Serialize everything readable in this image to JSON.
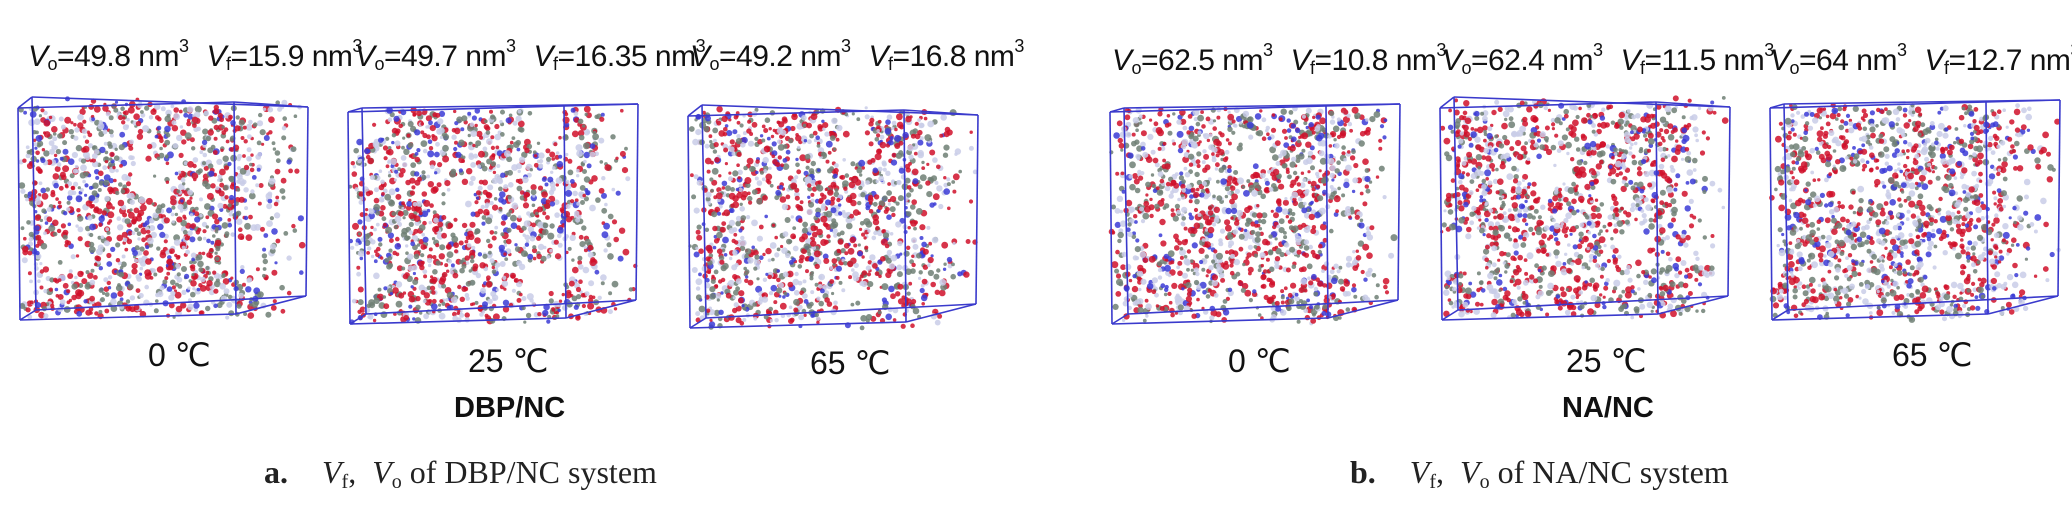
{
  "panels": [
    {
      "letter": "a.",
      "caption_text": "of DBP/NC system",
      "system": "DBP/NC",
      "sims": [
        {
          "vo": "=49.8 nm",
          "vf": "=15.9 nm",
          "temp": "0 ℃"
        },
        {
          "vo": "=49.7 nm",
          "vf": "=16.35 nm",
          "temp": "25 ℃"
        },
        {
          "vo": "=49.2 nm",
          "vf": "=16.8 nm",
          "temp": "65 ℃"
        }
      ]
    },
    {
      "letter": "b.",
      "caption_text": "of NA/NC system",
      "system": "NA/NC",
      "sims": [
        {
          "vo": "=62.5 nm",
          "vf": "=10.8 nm",
          "temp": "0 ℃"
        },
        {
          "vo": "=62.4 nm",
          "vf": "=11.5 nm",
          "temp": "25 ℃"
        },
        {
          "vo": "=64 nm",
          "vf": "=12.7 nm",
          "temp": "65 ℃"
        }
      ]
    }
  ],
  "symbols": {
    "V": "V",
    "sub_o": "o",
    "sub_f": "f",
    "sup_3": "3",
    "sep": ","
  },
  "colors": {
    "box_edge": "#3a3acc",
    "oxygen": "#d0102a",
    "carbon": "#6f7f74",
    "nitrogen": "#3b3bd6",
    "hydrogen": "#c9cde8"
  }
}
